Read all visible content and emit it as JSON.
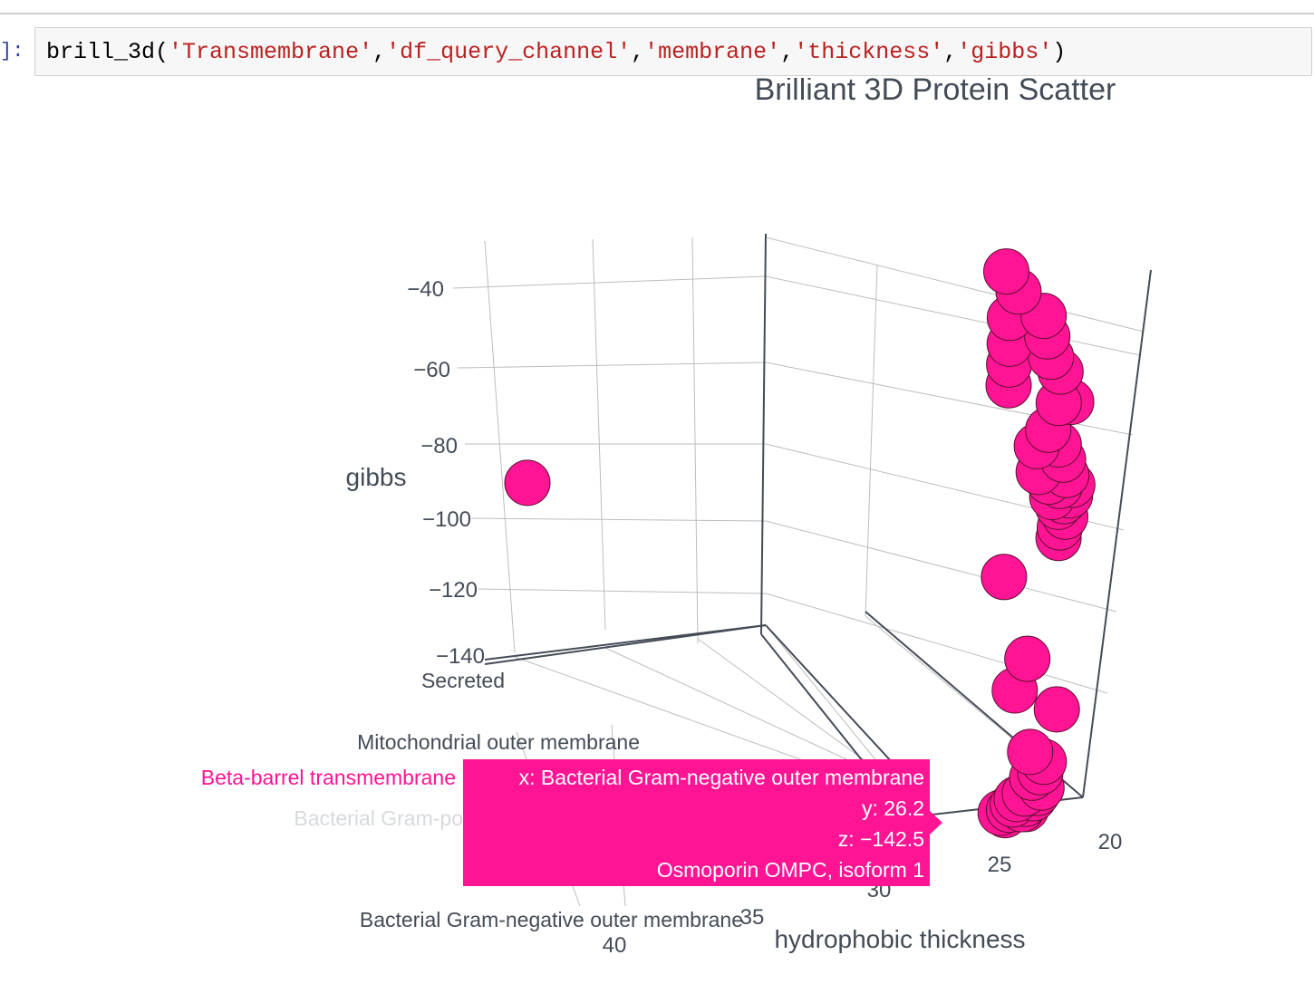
{
  "notebook": {
    "prompt_label": "]:",
    "code": {
      "func": "brill_3d(",
      "args": [
        "'Transmembrane'",
        "'df_query_channel'",
        "'membrane'",
        "'thickness'",
        "'gibbs'"
      ],
      "close": ")"
    }
  },
  "colors": {
    "marker": "#ff1493",
    "marker_edge": "#5a1030",
    "axis": "#444c57",
    "grid": "#bdbdbd"
  },
  "chart_data": {
    "type": "scatter",
    "title": "Brilliant 3D Protein Scatter",
    "xlabel": "",
    "ylabel": "hydrophobic thickness",
    "zlabel": "gibbs",
    "x_categories": [
      "Secreted",
      "Mitochondrial outer membrane",
      "Beta-barrel transmembrane",
      "Bacterial Gram-po",
      "Bacterial Gram-negative outer membrane"
    ],
    "y_ticks": [
      "20",
      "25",
      "30",
      "35",
      "40"
    ],
    "z_ticks": [
      "−40",
      "−60",
      "−80",
      "−100",
      "−120",
      "−140"
    ],
    "zlim": [
      -145,
      -30
    ],
    "series": [
      {
        "points": [
          {
            "x": "Bacterial Gram-negative outer membrane",
            "y": 24.0,
            "z": -38
          },
          {
            "x": "Bacterial Gram-negative outer membrane",
            "y": 23.5,
            "z": -42
          },
          {
            "x": "Bacterial Gram-negative outer membrane",
            "y": 24.0,
            "z": -47
          },
          {
            "x": "Bacterial Gram-negative outer membrane",
            "y": 24.1,
            "z": -52
          },
          {
            "x": "Bacterial Gram-negative outer membrane",
            "y": 24.2,
            "z": -56
          },
          {
            "x": "Bacterial Gram-negative outer membrane",
            "y": 24.3,
            "z": -60
          },
          {
            "x": "Bacterial Gram-negative outer membrane",
            "y": 21.8,
            "z": -47
          },
          {
            "x": "Bacterial Gram-negative outer membrane",
            "y": 21.6,
            "z": -51
          },
          {
            "x": "Bacterial Gram-negative outer membrane",
            "y": 21.4,
            "z": -55
          },
          {
            "x": "Bacterial Gram-negative outer membrane",
            "y": 20.6,
            "z": -58
          },
          {
            "x": "Bacterial Gram-negative outer membrane",
            "y": 19.8,
            "z": -64
          },
          {
            "x": "Bacterial Gram-negative outer membrane",
            "y": 21.0,
            "z": -64
          },
          {
            "x": "Bacterial Gram-negative outer membrane",
            "y": 22.2,
            "z": -69
          },
          {
            "x": "Bacterial Gram-negative outer membrane",
            "y": 21.3,
            "z": -72
          },
          {
            "x": "Bacterial Gram-negative outer membrane",
            "y": 21.0,
            "z": -75
          },
          {
            "x": "Bacterial Gram-negative outer membrane",
            "y": 20.8,
            "z": -78
          },
          {
            "x": "Bacterial Gram-negative outer membrane",
            "y": 20.3,
            "z": -80
          },
          {
            "x": "Bacterial Gram-negative outer membrane",
            "y": 20.6,
            "z": -82
          },
          {
            "x": "Bacterial Gram-negative outer membrane",
            "y": 21.5,
            "z": -80
          },
          {
            "x": "Bacterial Gram-negative outer membrane",
            "y": 21.8,
            "z": -84
          },
          {
            "x": "Bacterial Gram-negative outer membrane",
            "y": 21.8,
            "z": -88
          },
          {
            "x": "Bacterial Gram-negative outer membrane",
            "y": 21.2,
            "z": -86
          },
          {
            "x": "Bacterial Gram-negative outer membrane",
            "y": 21.2,
            "z": -83
          },
          {
            "x": "Bacterial Gram-negative outer membrane",
            "y": 22.0,
            "z": -90
          },
          {
            "x": "Bacterial Gram-negative outer membrane",
            "y": 23.2,
            "z": -72
          },
          {
            "x": "Bacterial Gram-negative outer membrane",
            "y": 23.2,
            "z": -77
          },
          {
            "x": "Bacterial Gram-negative outer membrane",
            "y": 22.5,
            "z": -79
          },
          {
            "x": "Bacterial Gram-negative outer membrane",
            "y": 22.3,
            "z": -82
          },
          {
            "x": "Bacterial Gram-negative outer membrane",
            "y": 25.2,
            "z": -97
          },
          {
            "x": "Bacterial Gram-negative outer membrane",
            "y": 24.4,
            "z": -113
          },
          {
            "x": "Bacterial Gram-negative outer membrane",
            "y": 25.1,
            "z": -119
          },
          {
            "x": "Bacterial Gram-negative outer membrane",
            "y": 23.2,
            "z": -123
          },
          {
            "x": "Bacterial Gram-negative outer membrane",
            "y": 24.6,
            "z": -131
          },
          {
            "x": "Bacterial Gram-negative outer membrane",
            "y": 24.0,
            "z": -133
          },
          {
            "x": "Bacterial Gram-negative outer membrane",
            "y": 24.2,
            "z": -135
          },
          {
            "x": "Bacterial Gram-negative outer membrane",
            "y": 24.6,
            "z": -136
          },
          {
            "x": "Bacterial Gram-negative outer membrane",
            "y": 24.2,
            "z": -138
          },
          {
            "x": "Bacterial Gram-negative outer membrane",
            "y": 24.4,
            "z": -139
          },
          {
            "x": "Bacterial Gram-negative outer membrane",
            "y": 25.0,
            "z": -139
          },
          {
            "x": "Bacterial Gram-negative outer membrane",
            "y": 24.6,
            "z": -140
          },
          {
            "x": "Bacterial Gram-negative outer membrane",
            "y": 25.0,
            "z": -141
          },
          {
            "x": "Bacterial Gram-negative outer membrane",
            "y": 25.4,
            "z": -140
          },
          {
            "x": "Bacterial Gram-negative outer membrane",
            "y": 25.6,
            "z": -141
          },
          {
            "x": "Bacterial Gram-negative outer membrane",
            "y": 25.0,
            "z": -142
          },
          {
            "x": "Bacterial Gram-negative outer membrane",
            "y": 25.8,
            "z": -142
          },
          {
            "x": "Bacterial Gram-negative outer membrane",
            "y": 26.0,
            "z": -143
          },
          {
            "x": "Bacterial Gram-negative outer membrane",
            "y": 26.2,
            "z": -142.5
          },
          {
            "x": "Bacterial Gram-negative outer membrane",
            "y": 25.2,
            "z": -142
          },
          {
            "x": "Secreted",
            "y": 32.0,
            "z": -92
          }
        ]
      }
    ],
    "hover": {
      "line1": "x: Bacterial Gram-negative outer membrane",
      "line2": "y: 26.2",
      "line3": "z: −142.5",
      "line4": "Osmoporin OMPC,  isoform 1",
      "trace_name": "Beta-barrel transmembrane"
    }
  }
}
